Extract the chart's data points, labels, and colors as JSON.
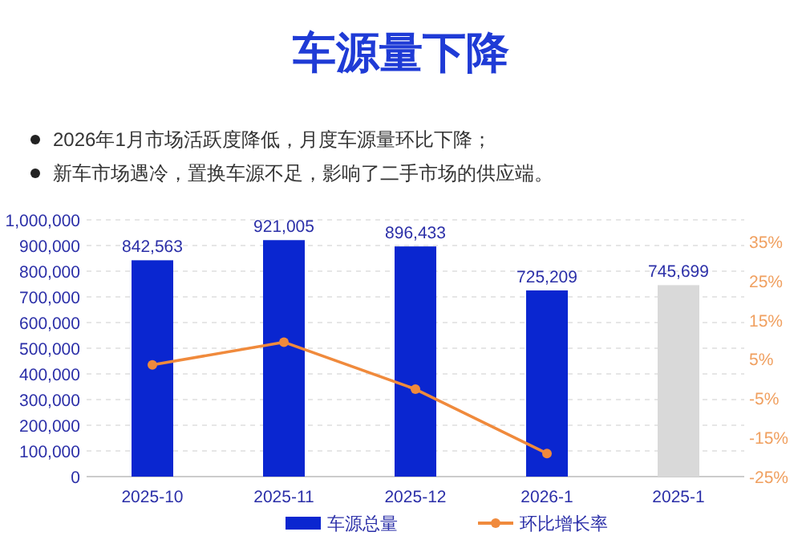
{
  "chart_data": {
    "type": "bar",
    "title": "车源量下降",
    "annotations": [
      "2026年1月市场活跃度降低，月度车源量环比下降；",
      "新车市场遇冷，置换车源不足，影响了二手市场的供应端。"
    ],
    "categories": [
      "2025-10",
      "2025-11",
      "2025-12",
      "2026-1",
      "2025-1"
    ],
    "series": [
      {
        "name": "车源总量",
        "color": "#0a26d0",
        "colors": [
          "#0a26d0",
          "#0a26d0",
          "#0a26d0",
          "#0a26d0",
          "#d9d9d9"
        ],
        "values": [
          842563,
          921005,
          896433,
          725209,
          745699
        ],
        "value_labels": [
          "842,563",
          "921,005",
          "896,433",
          "725,209",
          "745,699"
        ]
      },
      {
        "name": "环比增长率",
        "type": "line",
        "axis": "y2",
        "color": "#f08a3c",
        "values": [
          3.5,
          9.3,
          -2.7,
          -19.1,
          null
        ]
      }
    ],
    "ylim": [
      0,
      1000000
    ],
    "yticks": [
      {
        "value": 0,
        "label": "0"
      },
      {
        "value": 100000,
        "label": "100,000"
      },
      {
        "value": 200000,
        "label": "200,000"
      },
      {
        "value": 300000,
        "label": "300,000"
      },
      {
        "value": 400000,
        "label": "400,000"
      },
      {
        "value": 500000,
        "label": "500,000"
      },
      {
        "value": 600000,
        "label": "600,000"
      },
      {
        "value": 700000,
        "label": "700,000"
      },
      {
        "value": 800000,
        "label": "800,000"
      },
      {
        "value": 900000,
        "label": "900,000"
      },
      {
        "value": 1000000,
        "label": "1,000,000"
      }
    ],
    "y2lim": [
      -25,
      40.5
    ],
    "y2ticks": [
      {
        "value": -25,
        "label": "-25%"
      },
      {
        "value": -15,
        "label": "-15%"
      },
      {
        "value": -5,
        "label": "-5%"
      },
      {
        "value": 5,
        "label": "5%"
      },
      {
        "value": 15,
        "label": "15%"
      },
      {
        "value": 25,
        "label": "25%"
      },
      {
        "value": 35,
        "label": "35%"
      }
    ],
    "grid": "y",
    "legend": "bottom",
    "marker": "circle"
  }
}
